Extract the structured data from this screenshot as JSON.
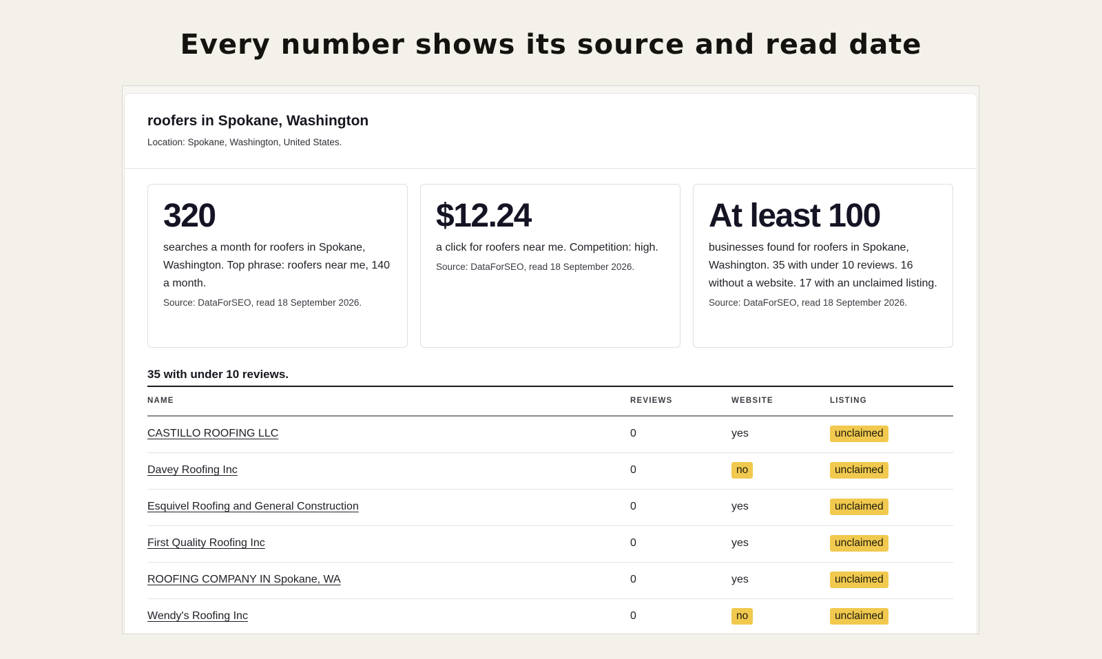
{
  "headline": "Every number shows its source and read date",
  "panel": {
    "title": "roofers in Spokane, Washington",
    "location": "Location: Spokane, Washington, United States."
  },
  "cards": [
    {
      "value": "320",
      "text": "searches a month for roofers in Spokane, Washington. Top phrase: roofers near me, 140 a month.",
      "source": "Source: DataForSEO, read 18 September 2026."
    },
    {
      "value": "$12.24",
      "text": "a click for roofers near me. Competition: high.",
      "source": "Source: DataForSEO, read 18 September 2026."
    },
    {
      "value": "At least 100",
      "text": "businesses found for roofers in Spokane, Washington. 35 with under 10 reviews. 16 without a website. 17 with an unclaimed listing.",
      "source": "Source: DataForSEO, read 18 September 2026."
    }
  ],
  "table": {
    "title": "35 with under 10 reviews.",
    "headers": {
      "name": "NAME",
      "reviews": "REVIEWS",
      "website": "WEBSITE",
      "listing": "LISTING"
    },
    "rows": [
      {
        "name": "CASTILLO ROOFING LLC",
        "reviews": "0",
        "website": "yes",
        "listing": "unclaimed"
      },
      {
        "name": "Davey Roofing Inc",
        "reviews": "0",
        "website": "no",
        "listing": "unclaimed"
      },
      {
        "name": "Esquivel Roofing and General Construction",
        "reviews": "0",
        "website": "yes",
        "listing": "unclaimed"
      },
      {
        "name": "First Quality Roofing Inc",
        "reviews": "0",
        "website": "yes",
        "listing": "unclaimed"
      },
      {
        "name": "ROOFING COMPANY IN Spokane, WA",
        "reviews": "0",
        "website": "yes",
        "listing": "unclaimed"
      },
      {
        "name": "Wendy's Roofing Inc",
        "reviews": "0",
        "website": "no",
        "listing": "unclaimed"
      }
    ]
  },
  "colors": {
    "background": "#f3f1ea",
    "highlight": "#f0c94e"
  }
}
